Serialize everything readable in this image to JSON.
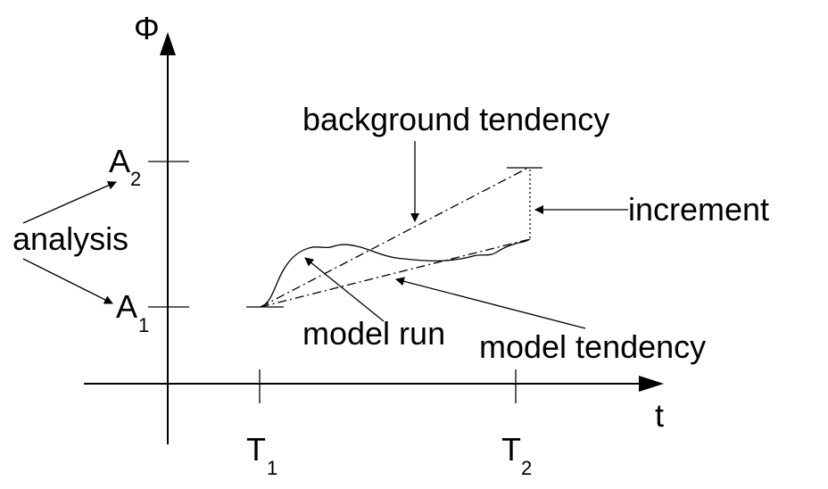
{
  "axes": {
    "y_symbol": "Φ",
    "x_symbol": "t"
  },
  "ticks": {
    "A1": {
      "main": "A",
      "sub": "1"
    },
    "A2": {
      "main": "A",
      "sub": "2"
    },
    "T1": {
      "main": "T",
      "sub": "1"
    },
    "T2": {
      "main": "T",
      "sub": "2"
    }
  },
  "labels": {
    "analysis": "analysis",
    "background_tendency": "background tendency",
    "increment": "increment",
    "model_run": "model run",
    "model_tendency": "model tendency"
  }
}
